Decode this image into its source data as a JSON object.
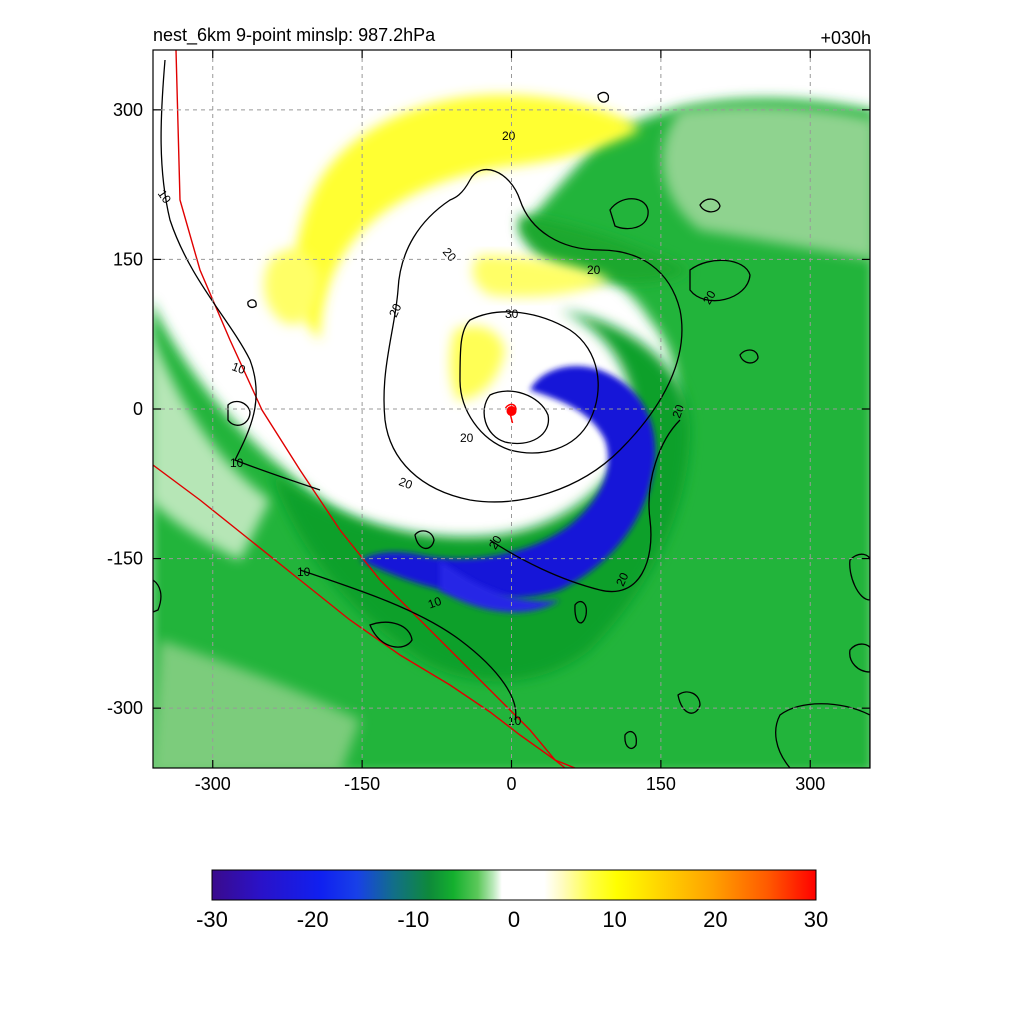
{
  "chart_data": {
    "type": "heatmap",
    "title_left": "nest_6km  9-point minslp: 987.2hPa",
    "title_right": "+030h",
    "xlabel": "",
    "ylabel": "",
    "xlim": [
      -360,
      360
    ],
    "ylim": [
      -360,
      360
    ],
    "x_ticks": [
      -300,
      -150,
      0,
      150,
      300
    ],
    "y_ticks": [
      300,
      150,
      0,
      -150,
      -300
    ],
    "grid": true,
    "colorbar": {
      "range": [
        -30,
        30
      ],
      "ticks": [
        -30,
        -20,
        -10,
        0,
        10,
        20,
        30
      ]
    },
    "fill_regions": [
      {
        "name": "rainband-ring-yellow",
        "value": 7
      },
      {
        "name": "outer-field-green",
        "value": -8
      },
      {
        "name": "spiral-band-green",
        "value": -12
      },
      {
        "name": "spiral-core-blue",
        "value": -21
      }
    ],
    "contour_levels": [
      "10",
      "20",
      "30"
    ],
    "center_marker": {
      "x": 0,
      "y": -2
    }
  }
}
